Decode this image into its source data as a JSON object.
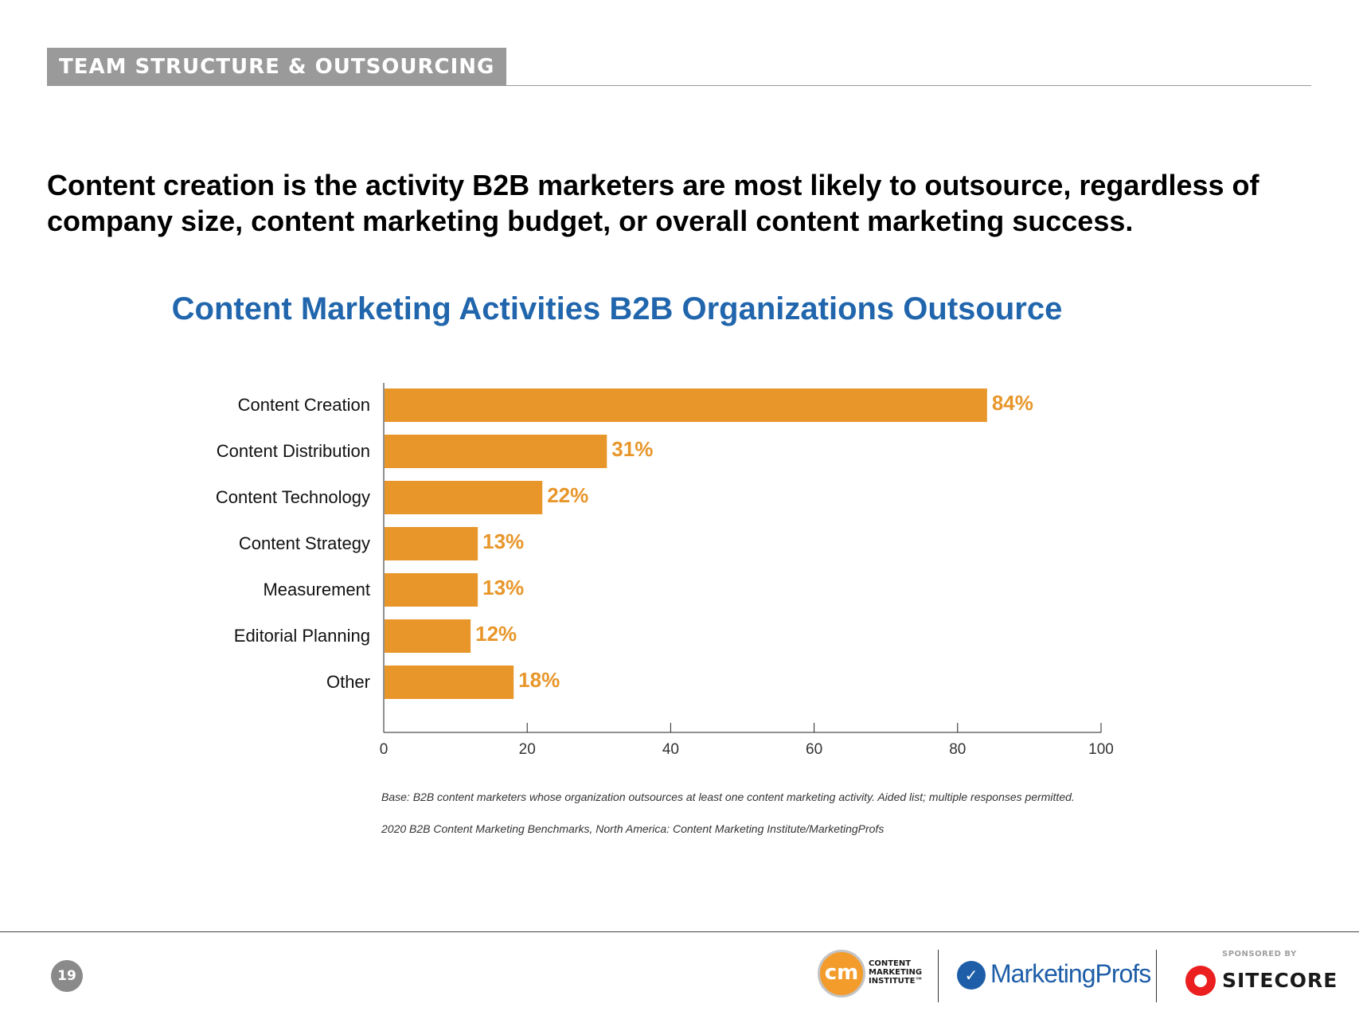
{
  "section": {
    "label": "TEAM STRUCTURE & OUTSOURCING"
  },
  "headline": "Content creation is the activity B2B marketers are most likely to outsource, regardless of company size, content marketing budget, or overall content marketing success.",
  "chart_data": {
    "type": "bar",
    "orientation": "horizontal",
    "title": "Content Marketing Activities B2B Organizations Outsource",
    "categories": [
      "Content Creation",
      "Content Distribution",
      "Content Technology",
      "Content Strategy",
      "Measurement",
      "Editorial Planning",
      "Other"
    ],
    "values": [
      84,
      31,
      22,
      13,
      13,
      12,
      18
    ],
    "value_labels": [
      "84%",
      "31%",
      "22%",
      "13%",
      "13%",
      "12%",
      "18%"
    ],
    "xlim": [
      0,
      100
    ],
    "xticks": [
      0,
      20,
      40,
      60,
      80,
      100
    ],
    "xlabel": "",
    "ylabel": "",
    "grid": false,
    "bar_color": "#e8962a",
    "label_color": "#e8962a"
  },
  "footnotes": {
    "base": "Base: B2B content marketers whose organization outsources at least one content marketing activity. Aided list; multiple responses permitted.",
    "source": "2020 B2B Content Marketing Benchmarks, North America: Content Marketing Institute/MarketingProfs"
  },
  "footer": {
    "page_number": "19",
    "cmi_logo": {
      "mark": "cm",
      "lines": [
        "CONTENT",
        "MARKETING",
        "INSTITUTE™"
      ]
    },
    "marketingprofs_logo": {
      "text": "MarketingProfs"
    },
    "sponsor": {
      "sponsored_by": "SPONSORED BY",
      "name": "SITECORE"
    }
  },
  "colors": {
    "title_blue": "#2166ad",
    "tab_gray": "#9a9a9a",
    "bar_orange": "#e8962a"
  }
}
